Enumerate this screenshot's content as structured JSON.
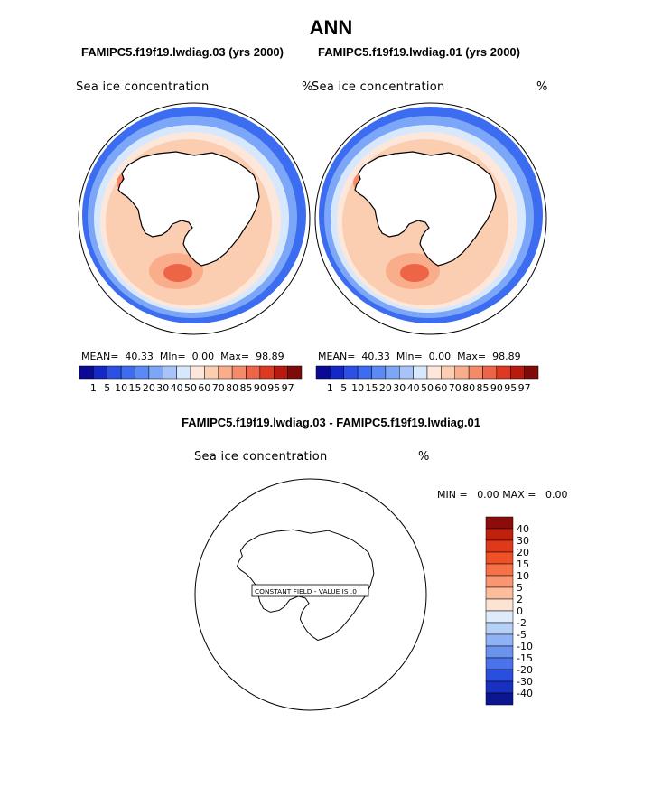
{
  "title": "ANN",
  "left_panel": {
    "header": "FAMIPC5.f19f19.lwdiag.03 (yrs 2000)",
    "field": "Sea ice concentration",
    "unit": "%",
    "mean_label": "MEAN=",
    "mean": "40.33",
    "min_label": "Mln=",
    "min": "0.00",
    "max_label": "Max=",
    "max": "98.89"
  },
  "right_panel": {
    "header": "FAMIPC5.f19f19.lwdiag.01 (yrs 2000)",
    "field": "Sea ice concentration",
    "unit": "%",
    "mean_label": "MEAN=",
    "mean": "40.33",
    "min_label": "Mln=",
    "min": "0.00",
    "max_label": "Max=",
    "max": "98.89"
  },
  "diff_panel": {
    "header": "FAMIPC5.f19f19.lwdiag.03 - FAMIPC5.f19f19.lwdiag.01",
    "field": "Sea ice concentration",
    "unit": "%",
    "min_label": "MIN =",
    "min": "0.00",
    "max_label": "MAX =",
    "max": "0.00",
    "constant_note": "CONSTANT FIELD - VALUE IS .0"
  },
  "chart_data": [
    {
      "type": "heatmap",
      "projection": "south-polar-stereographic",
      "title": "FAMIPC5.f19f19.lwdiag.03 (yrs 2000)",
      "variable": "Sea ice concentration",
      "units": "%",
      "mean": 40.33,
      "min": 0.0,
      "max": 98.89,
      "colorbar_levels": [
        1,
        5,
        10,
        15,
        20,
        30,
        40,
        50,
        60,
        70,
        80,
        85,
        90,
        95,
        97
      ],
      "colorbar_colors": [
        "#0a0a96",
        "#1428c8",
        "#2a50e6",
        "#3c6cf0",
        "#5a8af5",
        "#7ca6f8",
        "#a6c4fa",
        "#d8e8fc",
        "#fde7da",
        "#fbcdb1",
        "#f9ad8b",
        "#f58a68",
        "#ee6446",
        "#de3a22",
        "#b81a0e",
        "#7e0a0a"
      ],
      "colorbar_position": "bottom"
    },
    {
      "type": "heatmap",
      "projection": "south-polar-stereographic",
      "title": "FAMIPC5.f19f19.lwdiag.01 (yrs 2000)",
      "variable": "Sea ice concentration",
      "units": "%",
      "mean": 40.33,
      "min": 0.0,
      "max": 98.89,
      "colorbar_levels": [
        1,
        5,
        10,
        15,
        20,
        30,
        40,
        50,
        60,
        70,
        80,
        85,
        90,
        95,
        97
      ],
      "colorbar_colors": [
        "#0a0a96",
        "#1428c8",
        "#2a50e6",
        "#3c6cf0",
        "#5a8af5",
        "#7ca6f8",
        "#a6c4fa",
        "#d8e8fc",
        "#fde7da",
        "#fbcdb1",
        "#f9ad8b",
        "#f58a68",
        "#ee6446",
        "#de3a22",
        "#b81a0e",
        "#7e0a0a"
      ],
      "colorbar_position": "bottom"
    },
    {
      "type": "heatmap",
      "projection": "south-polar-stereographic",
      "title": "FAMIPC5.f19f19.lwdiag.03 - FAMIPC5.f19f19.lwdiag.01",
      "variable": "Sea ice concentration",
      "units": "%",
      "min": 0.0,
      "max": 0.0,
      "constant_value": 0.0,
      "colorbar_levels": [
        40,
        30,
        20,
        15,
        10,
        5,
        2,
        0,
        -2,
        -5,
        -10,
        -15,
        -20,
        -30,
        -40
      ],
      "colorbar_colors": [
        "#8c0c0c",
        "#c0200e",
        "#e0381a",
        "#f05028",
        "#f67048",
        "#f99672",
        "#fbbd9c",
        "#fde3d2",
        "#deebfb",
        "#b7d0f8",
        "#8fb2f4",
        "#6a92ef",
        "#4a72ea",
        "#2a4ee0",
        "#1830c0",
        "#0c1690"
      ],
      "colorbar_position": "right"
    }
  ]
}
